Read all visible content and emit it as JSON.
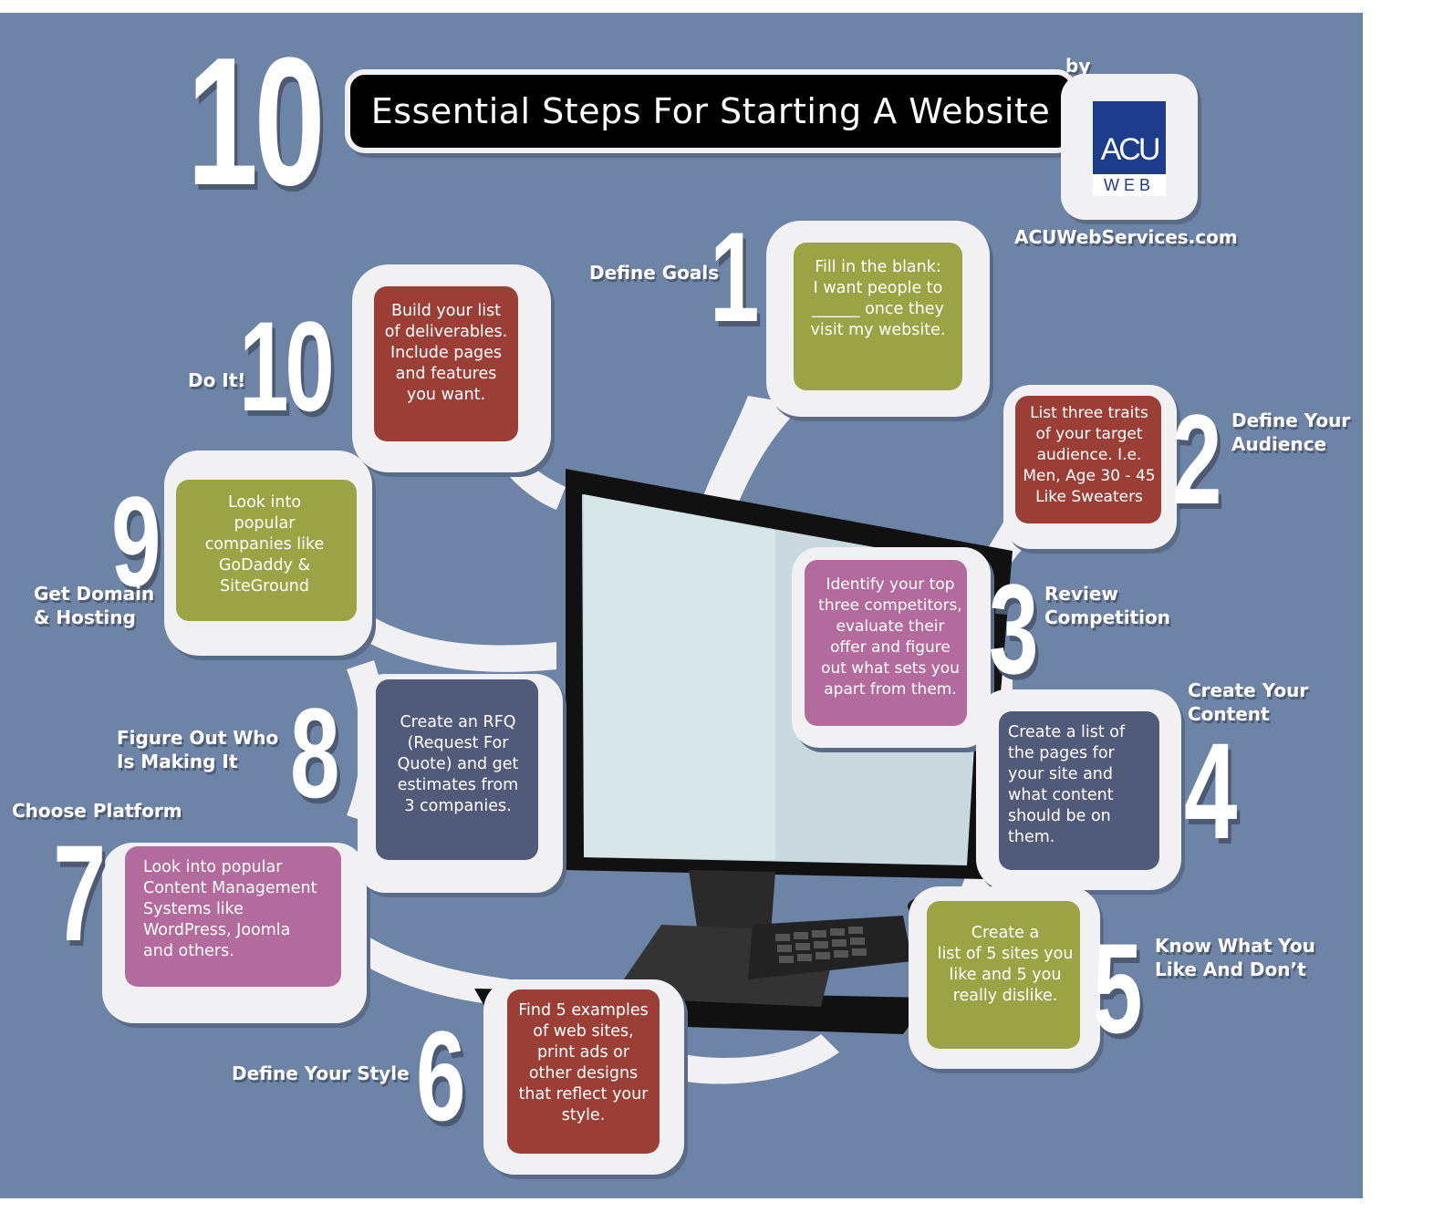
{
  "header": {
    "big_number": "10",
    "title": "Essential Steps For Starting A Website",
    "by": "by",
    "logo_top": "ACU",
    "logo_bottom": "WEB",
    "url": "ACUWebServices.com"
  },
  "colors": {
    "background": "#6e84a6",
    "frame": "#f1f1f3",
    "green": "#9aa444",
    "red": "#9b3f36",
    "pink": "#b36a9d",
    "slate": "#525a7a",
    "logo_blue": "#1d3c8c"
  },
  "steps": [
    {
      "number": "1",
      "label": "Define Goals",
      "text": "Fill in the blank:\nI want people to\n______ once they\nvisit my website."
    },
    {
      "number": "2",
      "label": "Define Your\nAudience",
      "text": "List three traits\nof your target\naudience. I.e.\nMen, Age 30 - 45\nLike Sweaters"
    },
    {
      "number": "3",
      "label": "Review\nCompetition",
      "text": "Identify your top\nthree competitors,\nevaluate their\noffer and figure\nout what sets you\napart from them."
    },
    {
      "number": "4",
      "label": "Create Your\nContent",
      "text": "Create a list of\nthe pages for\nyour site and\nwhat content\nshould be on\nthem."
    },
    {
      "number": "5",
      "label": "Know What You\nLike And Don’t",
      "text": "Create a\nlist of 5 sites you\nlike and 5 you\nreally dislike."
    },
    {
      "number": "6",
      "label": "Define Your Style",
      "text": "Find 5 examples\nof web sites,\nprint ads or\nother designs\nthat reflect your\nstyle."
    },
    {
      "number": "7",
      "label": "Choose Platform",
      "text": "Look into popular\nContent Management\nSystems like\nWordPress, Joomla\nand others."
    },
    {
      "number": "8",
      "label": "Figure Out Who\nIs Making It",
      "text": "Create an RFQ\n(Request For\nQuote) and get\nestimates from\n3 companies."
    },
    {
      "number": "9",
      "label": "Get Domain\n& Hosting",
      "text": "Look into\npopular\ncompanies like\nGoDaddy &\nSiteGround"
    },
    {
      "number": "10",
      "label": "Do It!",
      "text": "Build your list\nof deliverables.\nInclude pages\nand features\nyou want."
    }
  ]
}
